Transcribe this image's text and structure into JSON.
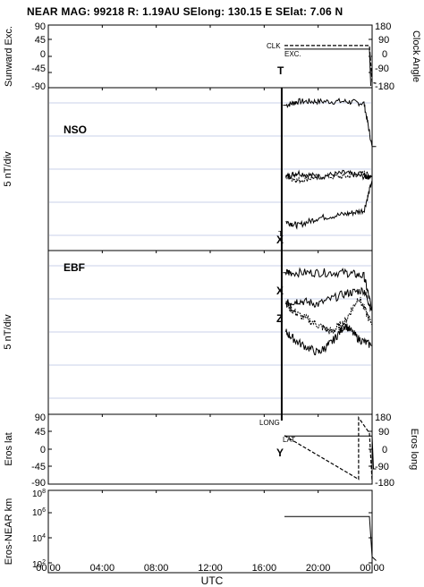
{
  "header": {
    "title": "NEAR MAG: 99218  R: 1.19AU  SElong:  130.15 E  SElat:    7.06 N"
  },
  "chart_data": [
    {
      "type": "line",
      "panel": "sunward-clock",
      "ylabel_left": "Sunward Exc.",
      "ylabel_right": "Clock Angle",
      "ylim": [
        -90,
        90
      ],
      "yticks_left": [
        "90",
        "45",
        "0",
        "-45",
        "-90"
      ],
      "yticks_right": [
        "180",
        "90",
        "0",
        "-90",
        "-180"
      ],
      "annotations": {
        "clk": "CLK",
        "exc": "EXC.",
        "marker": "T"
      },
      "series": [
        {
          "name": "CLK",
          "style": "dashed",
          "x": [
            17.5,
            23.8,
            24.0,
            24.3
          ],
          "y": [
            33,
            33,
            -80,
            -82
          ]
        },
        {
          "name": "EXC.",
          "style": "solid",
          "x": [
            17.5,
            23.8,
            23.9
          ],
          "y": [
            22,
            22,
            -90
          ]
        }
      ]
    },
    {
      "type": "line",
      "panel": "nso",
      "label": "NSO",
      "ylabel": "5 nT/div",
      "markers": [
        "T",
        "X"
      ],
      "series": [
        {
          "trace": "T",
          "x": [
            17.4,
            17.6,
            18.5,
            20,
            22,
            23.4,
            24.0,
            24.3
          ],
          "y": [
            17,
            17,
            18,
            18,
            18,
            17.5,
            6,
            6
          ]
        },
        {
          "trace": "X",
          "x": [
            17.6,
            18.5,
            20,
            22,
            23.4,
            24.0
          ],
          "y": [
            -2,
            -1,
            -2,
            -1,
            -2,
            -2
          ]
        },
        {
          "trace": "Y",
          "x": [
            17.6,
            18.5,
            20,
            22,
            23.4,
            24.0
          ],
          "y": [
            -2,
            -3,
            -2,
            -2,
            -1,
            -2
          ]
        },
        {
          "trace": "Z",
          "x": [
            17.6,
            18.5,
            20,
            22,
            23.4,
            24.0
          ],
          "y": [
            -14,
            -15,
            -13,
            -12,
            -11,
            -3
          ]
        }
      ]
    },
    {
      "type": "line",
      "panel": "ebf",
      "label": "EBF",
      "ylabel": "5 nT/div",
      "markers": [
        "X",
        "Z"
      ],
      "series": [
        {
          "trace": "T",
          "x": [
            17.4,
            18,
            20,
            22,
            23.4,
            24.0
          ],
          "y": [
            17,
            17,
            17,
            17,
            16,
            6
          ]
        },
        {
          "trace": "X",
          "x": [
            17.6,
            18.5,
            20,
            22,
            23.4,
            24.0
          ],
          "y": [
            8,
            9,
            8,
            11,
            12,
            6
          ]
        },
        {
          "trace": "Y",
          "x": [
            17.6,
            18.5,
            20,
            21,
            22,
            23,
            24.0
          ],
          "y": [
            8,
            5,
            2,
            0,
            3,
            10,
            2
          ]
        },
        {
          "trace": "Z",
          "x": [
            17.6,
            18.5,
            20,
            21,
            22,
            23,
            24.0
          ],
          "y": [
            0,
            -3,
            -6,
            -3,
            2,
            -2,
            -4
          ]
        }
      ]
    },
    {
      "type": "line",
      "panel": "eros-lat-long",
      "ylabel_left": "Eros lat",
      "ylabel_right": "Eros long",
      "ylim": [
        -90,
        90
      ],
      "yticks_left": [
        "90",
        "45",
        "0",
        "-45",
        "-90"
      ],
      "yticks_right": [
        "180",
        "90",
        "0",
        "-90",
        "-180"
      ],
      "annotations": {
        "long": "LONG",
        "lat": "LAT",
        "marker": "Y"
      },
      "series": [
        {
          "name": "LAT",
          "style": "solid",
          "x": [
            17.5,
            24.0,
            24.1,
            24.3
          ],
          "y": [
            37,
            37,
            -55,
            -55
          ]
        },
        {
          "name": "LONG",
          "style": "dashed",
          "x": [
            17.5,
            23.0,
            23.0,
            23.8,
            24.0
          ],
          "y": [
            38,
            -84,
            88,
            45,
            -90
          ]
        }
      ]
    },
    {
      "type": "line",
      "panel": "eros-near-distance",
      "ylabel": "Eros-NEAR km",
      "scale": "log",
      "yticks": [
        "10^8",
        "10^6",
        "10^4",
        "10^2"
      ],
      "series": [
        {
          "name": "distance",
          "x": [
            17.5,
            23.8,
            24.0,
            24.3
          ],
          "y": [
            500000,
            500000,
            300,
            150
          ]
        }
      ]
    }
  ],
  "xaxis": {
    "label": "UTC",
    "ticks": [
      "00:00",
      "04:00",
      "08:00",
      "12:00",
      "16:00",
      "20:00",
      "00:00"
    ],
    "tick_hours": [
      0,
      4,
      8,
      12,
      16,
      20,
      24
    ]
  }
}
